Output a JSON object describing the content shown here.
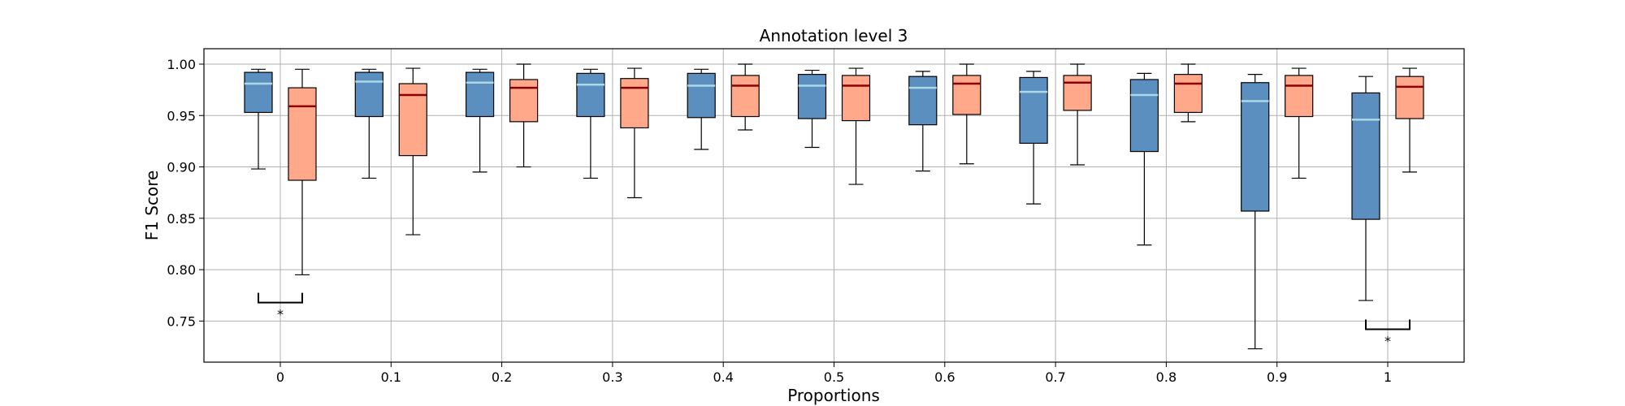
{
  "chart_data": {
    "type": "box",
    "title": "Annotation level 3",
    "xlabel": "Proportions",
    "ylabel": "F1 Score",
    "ylim": [
      0.71,
      1.015
    ],
    "yticks": [
      "0.75",
      "0.80",
      "0.85",
      "0.90",
      "0.95",
      "1.00"
    ],
    "categories": [
      "0",
      "0.1",
      "0.2",
      "0.3",
      "0.4",
      "0.5",
      "0.6",
      "0.7",
      "0.8",
      "0.9",
      "1"
    ],
    "grid": true,
    "series": [
      {
        "color": "#5b8fbf",
        "median_color": "#add8e6",
        "boxes": [
          {
            "whislo": 0.898,
            "q1": 0.953,
            "med": 0.981,
            "q3": 0.992,
            "whishi": 0.995
          },
          {
            "whislo": 0.889,
            "q1": 0.949,
            "med": 0.983,
            "q3": 0.992,
            "whishi": 0.995
          },
          {
            "whislo": 0.895,
            "q1": 0.949,
            "med": 0.982,
            "q3": 0.992,
            "whishi": 0.995
          },
          {
            "whislo": 0.889,
            "q1": 0.949,
            "med": 0.98,
            "q3": 0.991,
            "whishi": 0.995
          },
          {
            "whislo": 0.917,
            "q1": 0.948,
            "med": 0.979,
            "q3": 0.991,
            "whishi": 0.995
          },
          {
            "whislo": 0.919,
            "q1": 0.947,
            "med": 0.979,
            "q3": 0.99,
            "whishi": 0.994
          },
          {
            "whislo": 0.896,
            "q1": 0.941,
            "med": 0.977,
            "q3": 0.988,
            "whishi": 0.993
          },
          {
            "whislo": 0.864,
            "q1": 0.923,
            "med": 0.973,
            "q3": 0.987,
            "whishi": 0.993
          },
          {
            "whislo": 0.824,
            "q1": 0.915,
            "med": 0.97,
            "q3": 0.985,
            "whishi": 0.991
          },
          {
            "whislo": 0.723,
            "q1": 0.857,
            "med": 0.964,
            "q3": 0.982,
            "whishi": 0.99
          },
          {
            "whislo": 0.77,
            "q1": 0.849,
            "med": 0.946,
            "q3": 0.972,
            "whishi": 0.988
          }
        ]
      },
      {
        "color": "#ffa98a",
        "median_color": "#8b0000",
        "boxes": [
          {
            "whislo": 0.795,
            "q1": 0.887,
            "med": 0.959,
            "q3": 0.977,
            "whishi": 0.995
          },
          {
            "whislo": 0.834,
            "q1": 0.911,
            "med": 0.97,
            "q3": 0.981,
            "whishi": 0.996
          },
          {
            "whislo": 0.9,
            "q1": 0.944,
            "med": 0.977,
            "q3": 0.985,
            "whishi": 1.0
          },
          {
            "whislo": 0.87,
            "q1": 0.938,
            "med": 0.977,
            "q3": 0.986,
            "whishi": 0.996
          },
          {
            "whislo": 0.936,
            "q1": 0.949,
            "med": 0.979,
            "q3": 0.989,
            "whishi": 1.0
          },
          {
            "whislo": 0.883,
            "q1": 0.945,
            "med": 0.979,
            "q3": 0.989,
            "whishi": 0.996
          },
          {
            "whislo": 0.903,
            "q1": 0.951,
            "med": 0.981,
            "q3": 0.989,
            "whishi": 1.0
          },
          {
            "whislo": 0.902,
            "q1": 0.955,
            "med": 0.982,
            "q3": 0.989,
            "whishi": 1.0
          },
          {
            "whislo": 0.944,
            "q1": 0.953,
            "med": 0.981,
            "q3": 0.99,
            "whishi": 1.0
          },
          {
            "whislo": 0.889,
            "q1": 0.949,
            "med": 0.979,
            "q3": 0.989,
            "whishi": 0.996
          },
          {
            "whislo": 0.895,
            "q1": 0.947,
            "med": 0.978,
            "q3": 0.988,
            "whishi": 0.996
          }
        ]
      }
    ],
    "significance": [
      {
        "category_index": 0,
        "y": 0.768,
        "label": "*"
      },
      {
        "category_index": 10,
        "y": 0.742,
        "label": "*"
      }
    ]
  }
}
